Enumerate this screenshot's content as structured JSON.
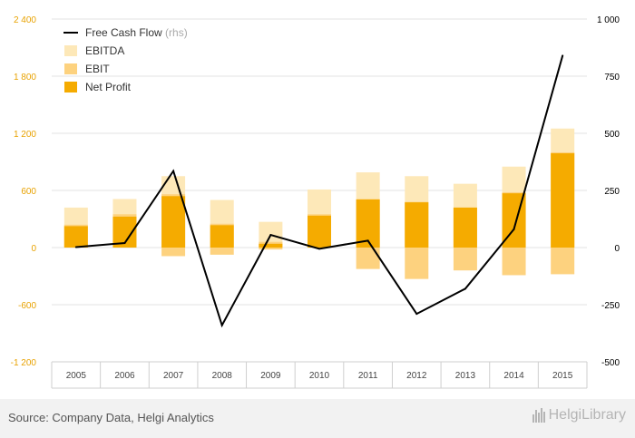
{
  "chart_data": {
    "type": "bar",
    "categories": [
      "2005",
      "2006",
      "2007",
      "2008",
      "2009",
      "2010",
      "2011",
      "2012",
      "2013",
      "2014",
      "2015"
    ],
    "series": [
      {
        "name": "EBITDA",
        "kind": "bar",
        "axis": "left",
        "color": "#fde8b8",
        "values": [
          420,
          510,
          750,
          500,
          270,
          610,
          790,
          750,
          670,
          850,
          1250
        ]
      },
      {
        "name": "EBIT",
        "kind": "bar",
        "axis": "left",
        "color": "#fdd27f",
        "values": [
          240,
          350,
          560,
          250,
          60,
          350,
          510,
          480,
          420,
          580,
          1000
        ]
      },
      {
        "name": "EBIT (negative)",
        "kind": "bar",
        "axis": "left",
        "color": "#fdd27f",
        "legend": false,
        "values": [
          0,
          0,
          -90,
          -75,
          -20,
          0,
          -225,
          -330,
          -240,
          -290,
          -280
        ]
      },
      {
        "name": "Net Profit",
        "kind": "bar",
        "axis": "left",
        "color": "#f5ab00",
        "values": [
          225,
          325,
          540,
          235,
          40,
          335,
          505,
          475,
          420,
          570,
          990
        ]
      },
      {
        "name": "Free Cash Flow",
        "kind": "line",
        "axis": "right",
        "color": "#000000",
        "values": [
          2,
          20,
          335,
          -340,
          55,
          -5,
          30,
          -290,
          -180,
          80,
          840
        ]
      }
    ],
    "legend": [
      {
        "name": "Free Cash Flow",
        "suffix": "(rhs)",
        "marker": "line",
        "color": "#000000"
      },
      {
        "name": "EBITDA",
        "marker": "box",
        "color": "#fde8b8"
      },
      {
        "name": "EBIT",
        "marker": "box",
        "color": "#fdd27f"
      },
      {
        "name": "Net Profit",
        "marker": "box",
        "color": "#f5ab00"
      }
    ],
    "y_left": {
      "min": -1200,
      "max": 2400,
      "ticks": [
        -1200,
        -600,
        0,
        600,
        1200,
        1800,
        2400
      ],
      "tick_labels": [
        "-1 200",
        "-600",
        "0",
        "600",
        "1 200",
        "1 800",
        "2 400"
      ],
      "color": "#e8a200"
    },
    "y_right": {
      "min": -500,
      "max": 1000,
      "ticks": [
        -500,
        -250,
        0,
        250,
        500,
        750,
        1000
      ],
      "tick_labels": [
        "-500",
        "-250",
        "0",
        "250",
        "500",
        "750",
        "1 000"
      ],
      "color": "#000000"
    },
    "legend_position": "top-left",
    "grid": true
  },
  "footer": {
    "source": "Source: Company Data, Helgi Analytics",
    "logo": "HelgiLibrary"
  }
}
